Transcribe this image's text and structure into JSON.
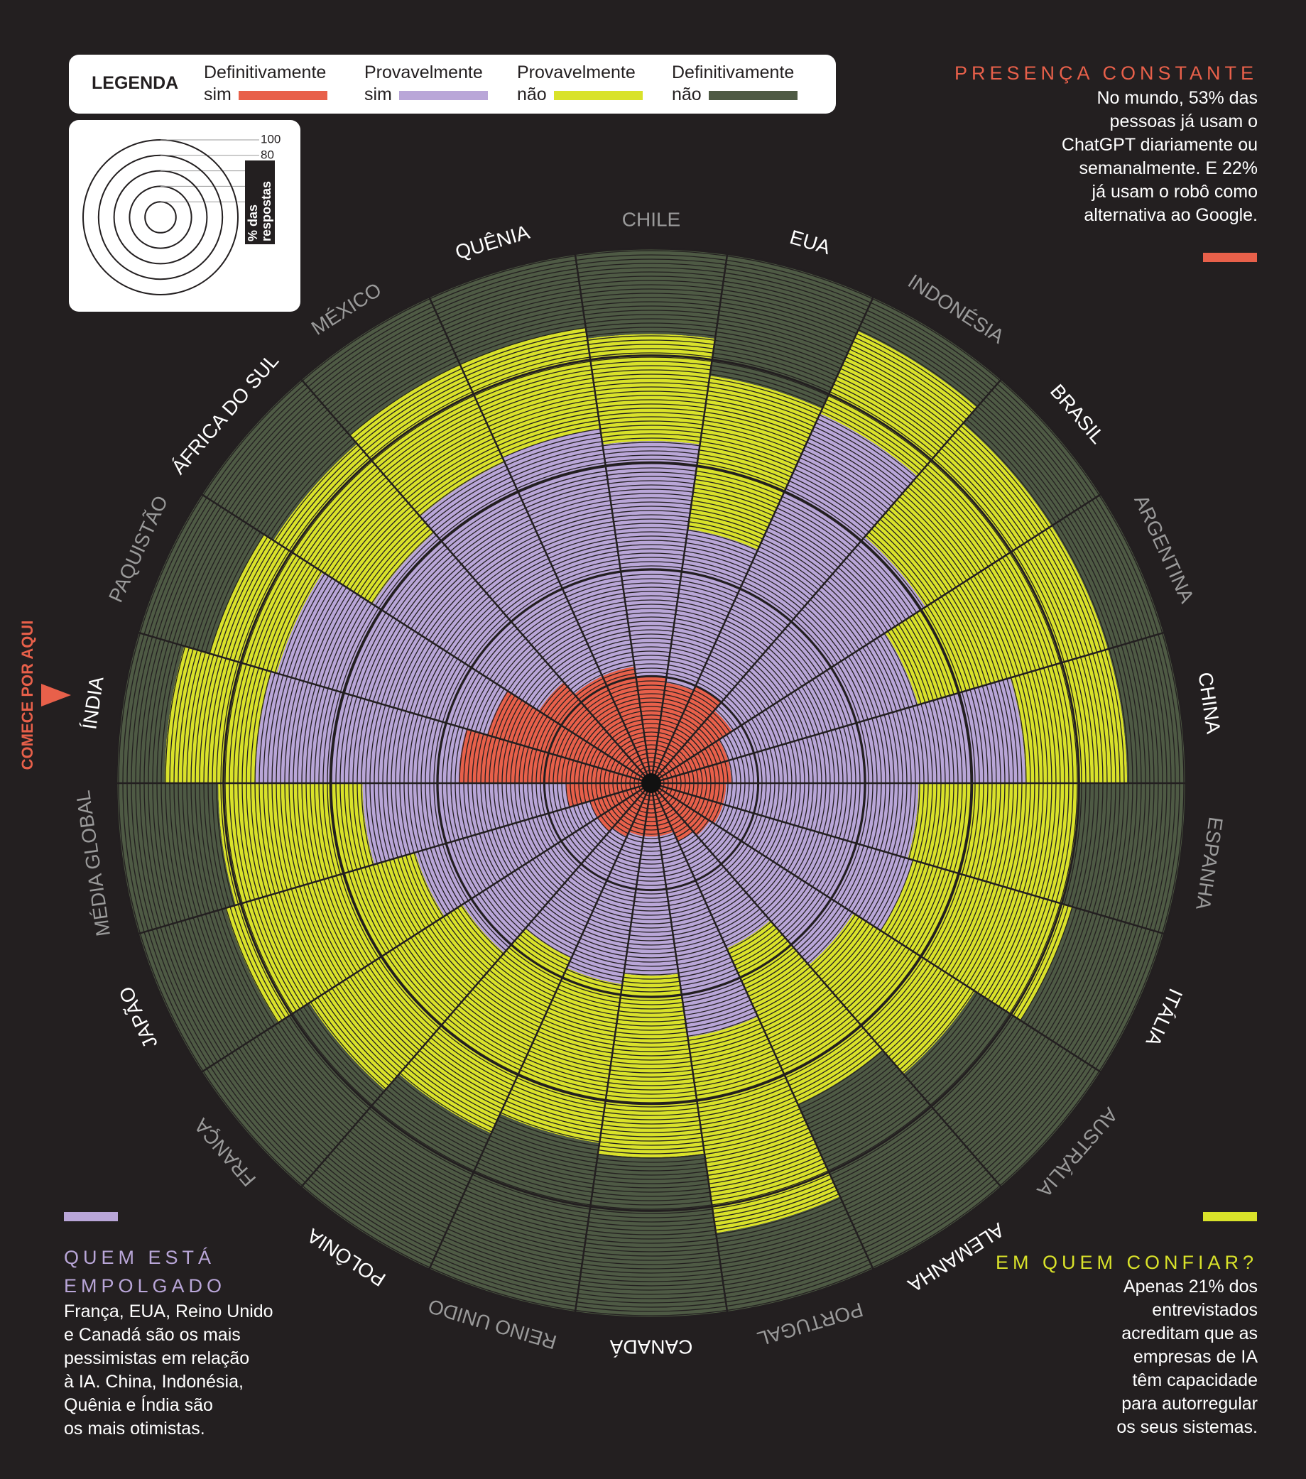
{
  "chart_data": {
    "type": "radial",
    "legend_title": "LEGENDA",
    "y_label": "% das respostas",
    "categories": [
      "ÍNDIA",
      "PAQUISTÃO",
      "ÁFRICA DO SUL",
      "MÉXICO",
      "QUÊNIA",
      "CHILE",
      "EUA",
      "INDONÉSIA",
      "BRASIL",
      "ARGENTINA",
      "CHINA",
      "ESPANHA",
      "ITÁLIA",
      "AUSTRÁLIA",
      "ALEMANHA",
      "PORTUGAL",
      "CANADÁ",
      "REINO UNIDO",
      "POLÔNIA",
      "FRANÇA",
      "JAPÃO",
      "MÉDIA GLOBAL"
    ],
    "series": [
      {
        "name": "Definitivamente sim",
        "color": "#e8604a",
        "values": [
          36,
          32,
          25,
          22,
          22,
          20,
          19,
          20,
          18,
          15,
          15,
          14,
          14,
          13,
          12,
          10,
          10,
          10,
          11,
          12,
          12,
          16
        ]
      },
      {
        "name": "Provavelmente sim",
        "color": "#b9a6d8",
        "values": [
          38,
          41,
          37,
          44,
          45,
          44,
          29,
          56,
          43,
          37,
          55,
          36,
          37,
          32,
          22,
          38,
          26,
          28,
          25,
          30,
          34,
          38
        ]
      },
      {
        "name": "Provavelmente não",
        "color": "#d9e22a",
        "values": [
          17,
          13,
          22,
          20,
          19,
          20,
          29,
          17,
          28,
          37,
          19,
          30,
          31,
          27,
          32,
          37,
          34,
          30,
          36,
          34,
          37,
          27
        ]
      },
      {
        "name": "Definitivamente não",
        "color": "#4e5a44",
        "values": [
          9,
          14,
          16,
          14,
          14,
          16,
          23,
          7,
          11,
          11,
          11,
          20,
          18,
          28,
          34,
          15,
          30,
          32,
          28,
          24,
          17,
          19
        ]
      }
    ],
    "ylim": [
      0,
      100
    ],
    "yticks": [
      20,
      40,
      60,
      80,
      100
    ]
  },
  "start_hint": "COMECE POR AQUI",
  "notes": [
    {
      "color": "#e8604a",
      "title": [
        "PRESENÇA CONSTANTE"
      ],
      "lines": [
        "No mundo, 53% das",
        "pessoas já usam o",
        "ChatGPT diariamente ou",
        "semanalmente. E 22%",
        "já usam o robô como",
        "alternativa ao Google."
      ]
    },
    {
      "color": "#b9a6d8",
      "title": [
        "QUEM ESTÁ",
        "EMPOLGADO"
      ],
      "lines": [
        "França, EUA, Reino Unido",
        "e Canadá são os mais",
        "pessimistas em relação",
        "à IA. China, Indonésia,",
        "Quênia e Índia são",
        "os mais otimistas."
      ]
    },
    {
      "color": "#d9e22a",
      "title": [
        "EM QUEM CONFIAR?"
      ],
      "lines": [
        "Apenas 21% dos",
        "entrevistados",
        "acreditam que as",
        "empresas de IA",
        "têm capacidade",
        "para autorregular",
        "os seus sistemas."
      ]
    }
  ]
}
